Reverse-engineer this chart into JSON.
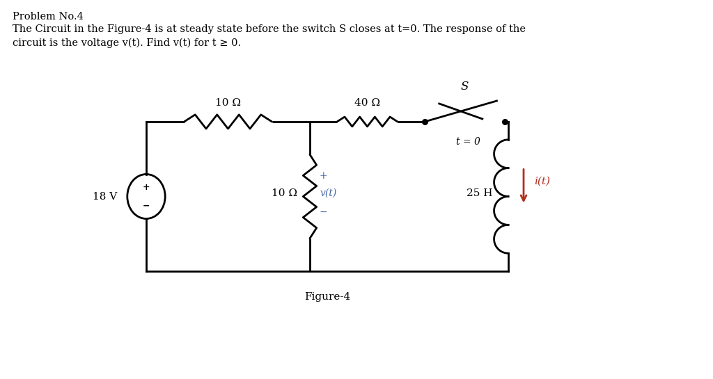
{
  "title_line1": "Problem No.4",
  "title_line2": "The Circuit in the Figure-4 is at steady state before the switch S closes at t=0. The response of the",
  "title_line3": "circuit is the voltage v(t). Find v(t) for t ≥ 0.",
  "figure_caption": "Figure-4",
  "bg_color": "#ffffff",
  "text_color": "#000000",
  "line_color": "#000000",
  "arrow_color": "#b03020",
  "vt_color": "#4466aa",
  "it_color": "#b03020",
  "resistor_10_top_label": "10 Ω",
  "resistor_40_label": "40 Ω",
  "switch_label": "S",
  "switch_time_label": "t = 0",
  "source_label": "18 V",
  "resistor_10_mid_label": "10 Ω",
  "inductor_label": "25 H",
  "v_plus": "+",
  "v_label": "v(t)",
  "v_minus": "−",
  "it_label": "i(t)"
}
